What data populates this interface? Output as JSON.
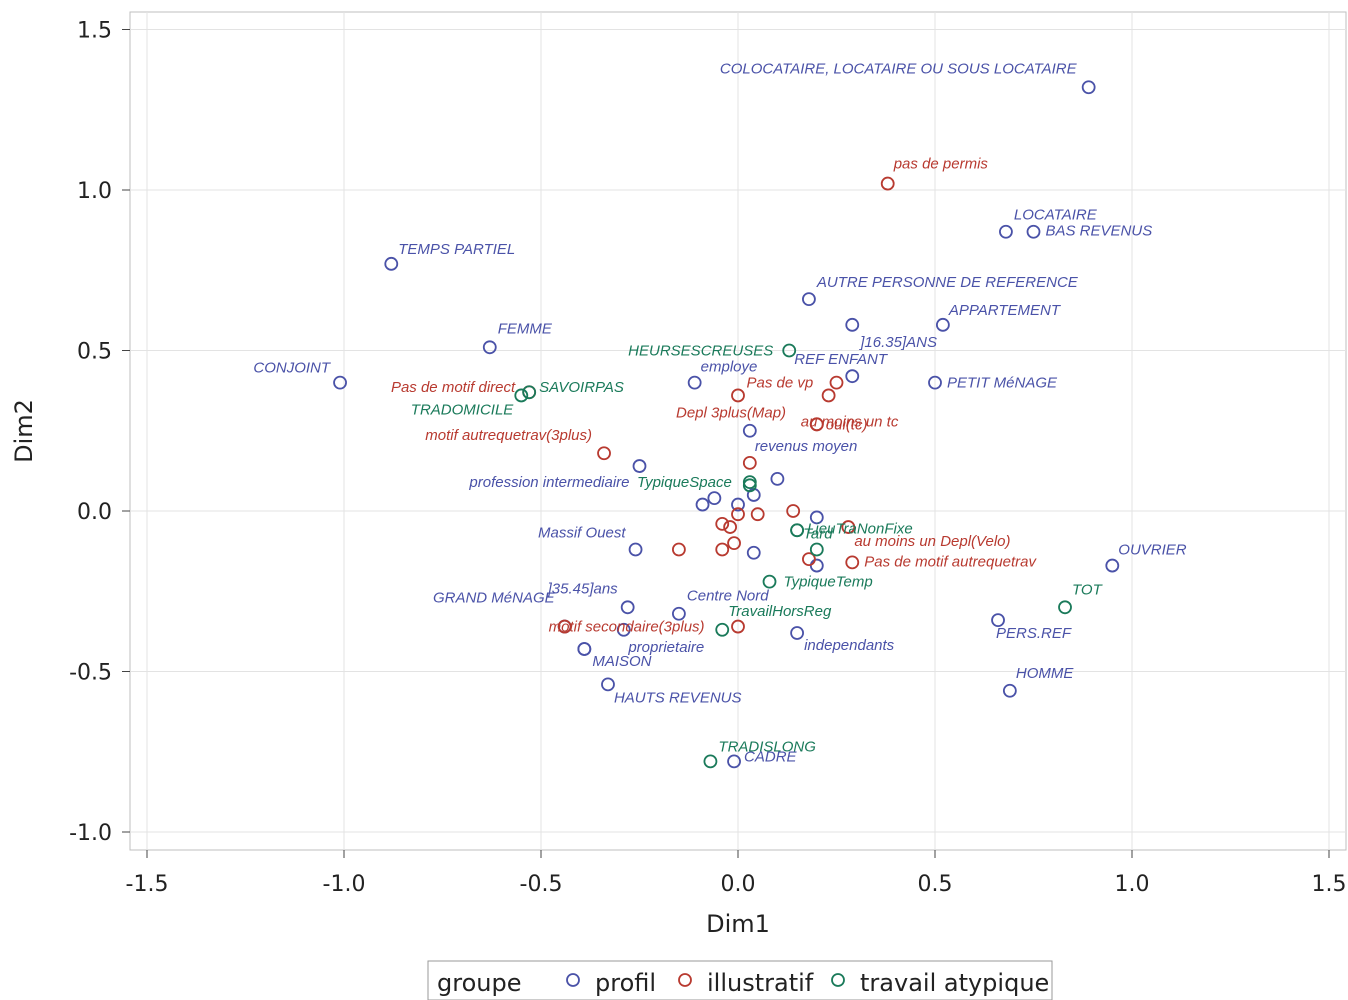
{
  "chart_data": {
    "type": "scatter",
    "title": "",
    "xlabel": "Dim1",
    "ylabel": "Dim2",
    "xlim": [
      -1.55,
      1.55
    ],
    "ylim": [
      -1.05,
      1.55
    ],
    "xticks": [
      -1.5,
      -1.0,
      -0.5,
      0.0,
      0.5,
      1.0,
      1.5
    ],
    "xtick_labels": [
      "-1.5",
      "-1.0",
      "-0.5",
      "0.0",
      "0.5",
      "1.0",
      "1.5"
    ],
    "yticks": [
      -1.0,
      -0.5,
      0.0,
      0.5,
      1.0,
      1.5
    ],
    "ytick_labels": [
      "-1.0",
      "-0.5",
      "0.0",
      "0.5",
      "1.0",
      "1.5"
    ],
    "grid": true,
    "legend": {
      "title": "groupe",
      "placement": "bottom",
      "entries": [
        {
          "name": "profil",
          "color": "#4a52a8"
        },
        {
          "name": "illustratif",
          "color": "#b83a30"
        },
        {
          "name": "travail atypique",
          "color": "#1a7a5a"
        }
      ]
    },
    "series": [
      {
        "name": "profil",
        "color": "#4a52a8",
        "points": [
          {
            "label": "COLOCATAIRE, LOCATAIRE OU SOUS LOCATAIRE",
            "x": 0.89,
            "y": 1.32
          },
          {
            "label": "LOCATAIRE",
            "x": 0.68,
            "y": 0.87
          },
          {
            "label": "BAS REVENUS",
            "x": 0.75,
            "y": 0.87
          },
          {
            "label": "TEMPS PARTIEL",
            "x": -0.88,
            "y": 0.77
          },
          {
            "label": "AUTRE PERSONNE DE REFERENCE",
            "x": 0.18,
            "y": 0.66
          },
          {
            "label": "APPARTEMENT",
            "x": 0.52,
            "y": 0.58
          },
          {
            "label": "]16.35]ANS",
            "x": 0.29,
            "y": 0.58
          },
          {
            "label": "FEMME",
            "x": -0.63,
            "y": 0.51
          },
          {
            "label": "REF ENFANT",
            "x": 0.29,
            "y": 0.42
          },
          {
            "label": "CONJOINT",
            "x": -1.01,
            "y": 0.4
          },
          {
            "label": "employe",
            "x": -0.11,
            "y": 0.4
          },
          {
            "label": "PETIT MéNAGE",
            "x": 0.5,
            "y": 0.4
          },
          {
            "label": "revenus moyen",
            "x": 0.03,
            "y": 0.25
          },
          {
            "label": "profession intermediaire",
            "x": -0.25,
            "y": 0.14
          },
          {
            "label": "",
            "x": 0.1,
            "y": 0.1
          },
          {
            "label": "",
            "x": -0.06,
            "y": 0.04
          },
          {
            "label": "",
            "x": -0.09,
            "y": 0.02
          },
          {
            "label": "",
            "x": 0.0,
            "y": 0.02
          },
          {
            "label": "",
            "x": 0.04,
            "y": 0.05
          },
          {
            "label": "",
            "x": 0.2,
            "y": -0.02
          },
          {
            "label": "Massif Ouest",
            "x": -0.26,
            "y": -0.12
          },
          {
            "label": "",
            "x": 0.04,
            "y": -0.13
          },
          {
            "label": "",
            "x": 0.2,
            "y": -0.17
          },
          {
            "label": "OUVRIER",
            "x": 0.95,
            "y": -0.17
          },
          {
            "label": "]35.45]ans",
            "x": -0.28,
            "y": -0.3
          },
          {
            "label": "Centre Nord",
            "x": -0.15,
            "y": -0.32
          },
          {
            "label": "GRAND MéNAGE",
            "x": -0.44,
            "y": -0.36
          },
          {
            "label": "",
            "x": -0.29,
            "y": -0.37
          },
          {
            "label": "PERS.REF",
            "x": 0.66,
            "y": -0.34
          },
          {
            "label": "independants",
            "x": 0.15,
            "y": -0.38
          },
          {
            "label": "proprietaire",
            "x": -0.39,
            "y": -0.43
          },
          {
            "label": "MAISON",
            "x": -0.39,
            "y": -0.43
          },
          {
            "label": "HAUTS REVENUS",
            "x": -0.33,
            "y": -0.54
          },
          {
            "label": "HOMME",
            "x": 0.69,
            "y": -0.56
          },
          {
            "label": "CADRE",
            "x": -0.01,
            "y": -0.78
          }
        ]
      },
      {
        "name": "illustratif",
        "color": "#b83a30",
        "points": [
          {
            "label": "pas de permis",
            "x": 0.38,
            "y": 1.02
          },
          {
            "label": "Pas de motif direct",
            "x": -0.53,
            "y": 0.37
          },
          {
            "label": "Pas de vp",
            "x": 0.25,
            "y": 0.4
          },
          {
            "label": "Depl 3plus(Map)",
            "x": 0.0,
            "y": 0.36
          },
          {
            "label": "",
            "x": 0.23,
            "y": 0.36
          },
          {
            "label": "au moins un tc",
            "x": 0.2,
            "y": 0.27
          },
          {
            "label": "oui(tc)",
            "x": 0.2,
            "y": 0.27
          },
          {
            "label": "motif autrequetrav(3plus)",
            "x": -0.34,
            "y": 0.18
          },
          {
            "label": "",
            "x": 0.03,
            "y": 0.15
          },
          {
            "label": "",
            "x": 0.14,
            "y": 0.0
          },
          {
            "label": "",
            "x": 0.0,
            "y": -0.01
          },
          {
            "label": "",
            "x": 0.05,
            "y": -0.01
          },
          {
            "label": "",
            "x": -0.04,
            "y": -0.04
          },
          {
            "label": "",
            "x": -0.02,
            "y": -0.05
          },
          {
            "label": "au moins un Depl(Velo)",
            "x": 0.28,
            "y": -0.05
          },
          {
            "label": "",
            "x": -0.01,
            "y": -0.1
          },
          {
            "label": "",
            "x": -0.15,
            "y": -0.12
          },
          {
            "label": "",
            "x": -0.04,
            "y": -0.12
          },
          {
            "label": "",
            "x": 0.18,
            "y": -0.15
          },
          {
            "label": "Pas de motif autrequetrav",
            "x": 0.29,
            "y": -0.16
          },
          {
            "label": "motif secondaire(3plus)",
            "x": -0.44,
            "y": -0.36
          },
          {
            "label": "",
            "x": 0.0,
            "y": -0.36
          }
        ]
      },
      {
        "name": "travail atypique",
        "color": "#1a7a5a",
        "points": [
          {
            "label": "HEURSESCREUSES",
            "x": 0.13,
            "y": 0.5
          },
          {
            "label": "SAVOIRPAS",
            "x": -0.53,
            "y": 0.37
          },
          {
            "label": "TRADOMICILE",
            "x": -0.55,
            "y": 0.36
          },
          {
            "label": "TypiqueSpace",
            "x": 0.03,
            "y": 0.09
          },
          {
            "label": "",
            "x": 0.03,
            "y": 0.08
          },
          {
            "label": "LieuTraNonFixe",
            "x": 0.15,
            "y": -0.06
          },
          {
            "label": "Tard",
            "x": 0.15,
            "y": -0.06
          },
          {
            "label": "",
            "x": 0.2,
            "y": -0.12
          },
          {
            "label": "TypiqueTemp",
            "x": 0.08,
            "y": -0.22
          },
          {
            "label": "TravailHorsReg",
            "x": -0.04,
            "y": -0.37
          },
          {
            "label": "TOT",
            "x": 0.83,
            "y": -0.3
          },
          {
            "label": "TRADISLONG",
            "x": -0.07,
            "y": -0.78
          }
        ]
      }
    ]
  }
}
